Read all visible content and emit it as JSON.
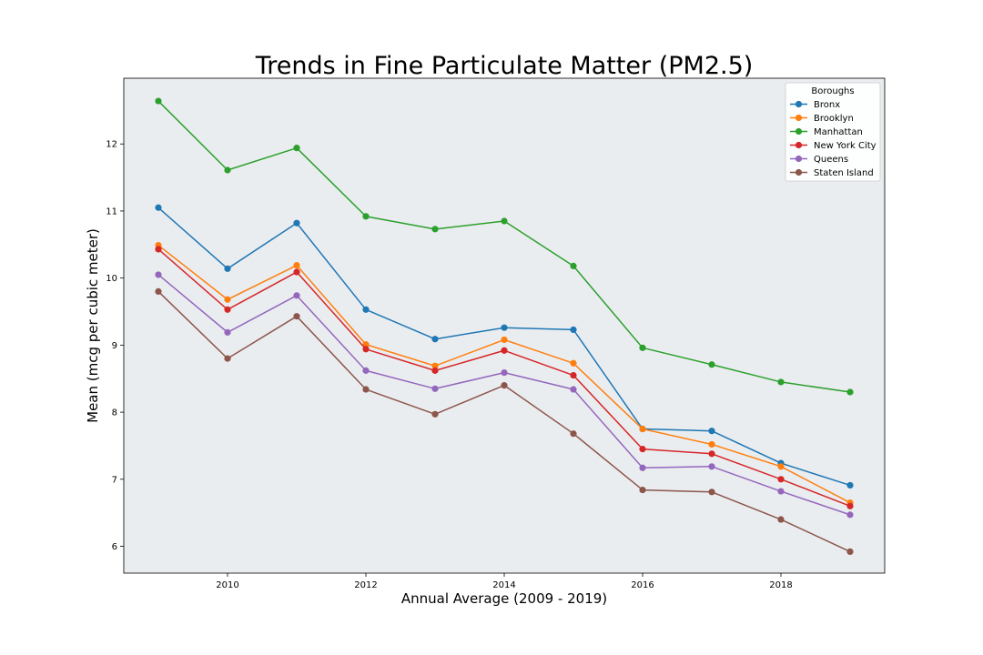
{
  "chart_data": {
    "type": "line",
    "title": "Trends in Fine Particulate Matter (PM2.5)",
    "xlabel": "Annual Average (2009 - 2019)",
    "ylabel": "Mean (mcg per cubic meter)",
    "x": [
      2009,
      2010,
      2011,
      2012,
      2013,
      2014,
      2015,
      2016,
      2017,
      2018,
      2019
    ],
    "xlim": [
      2008.5,
      2019.5
    ],
    "ylim": [
      5.6,
      12.98
    ],
    "xticks": [
      2010,
      2012,
      2014,
      2016,
      2018
    ],
    "yticks": [
      6,
      7,
      8,
      9,
      10,
      11,
      12
    ],
    "grid": false,
    "legend": {
      "title": "Boroughs",
      "placement": "top-right"
    },
    "plot_background": "#EAEDF0",
    "series": [
      {
        "name": "Bronx",
        "color": "#1F77B4",
        "values": [
          11.05,
          10.14,
          10.82,
          9.53,
          9.09,
          9.26,
          9.23,
          7.75,
          7.72,
          7.24,
          6.91
        ]
      },
      {
        "name": "Brooklyn",
        "color": "#FF7F0E",
        "values": [
          10.49,
          9.68,
          10.19,
          9.01,
          8.69,
          9.08,
          8.73,
          7.75,
          7.52,
          7.19,
          6.65
        ]
      },
      {
        "name": "Manhattan",
        "color": "#2CA02C",
        "values": [
          12.64,
          11.61,
          11.94,
          10.92,
          10.73,
          10.85,
          10.18,
          8.96,
          8.71,
          8.45,
          8.3
        ]
      },
      {
        "name": "New York City",
        "color": "#D62728",
        "values": [
          10.43,
          9.53,
          10.09,
          8.94,
          8.62,
          8.92,
          8.55,
          7.45,
          7.38,
          7.0,
          6.6
        ]
      },
      {
        "name": "Queens",
        "color": "#9467BD",
        "values": [
          10.05,
          9.19,
          9.74,
          8.62,
          8.35,
          8.59,
          8.34,
          7.17,
          7.19,
          6.82,
          6.47
        ]
      },
      {
        "name": "Staten Island",
        "color": "#8C564B",
        "values": [
          9.8,
          8.8,
          9.43,
          8.34,
          7.97,
          8.4,
          7.68,
          6.84,
          6.81,
          6.4,
          5.92
        ]
      }
    ]
  }
}
